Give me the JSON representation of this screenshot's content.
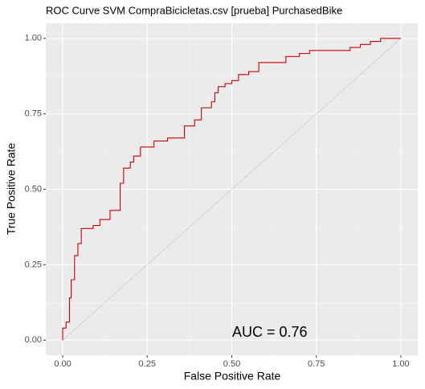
{
  "chart_data": {
    "type": "line",
    "title": "ROC Curve SVM CompraBicicletas.csv [prueba] PurchasedBike",
    "xlabel": "False Positive Rate",
    "ylabel": "True Positive Rate",
    "annotation": "AUC = 0.76",
    "xlim": [
      -0.05,
      1.05
    ],
    "ylim": [
      -0.05,
      1.05
    ],
    "xticks": [
      {
        "value": 0,
        "label": "0.00"
      },
      {
        "value": 0.25,
        "label": "0.25"
      },
      {
        "value": 0.5,
        "label": "0.50"
      },
      {
        "value": 0.75,
        "label": "0.75"
      },
      {
        "value": 1,
        "label": "1.00"
      }
    ],
    "yticks": [
      {
        "value": 0,
        "label": "0.00"
      },
      {
        "value": 0.25,
        "label": "0.25"
      },
      {
        "value": 0.5,
        "label": "0.50"
      },
      {
        "value": 0.75,
        "label": "0.75"
      },
      {
        "value": 1,
        "label": "1.00"
      }
    ],
    "grid": true,
    "diagonal_color": "#a6a6a6",
    "series": [
      {
        "color": "#cc0000",
        "x": [
          0,
          0,
          0.01,
          0.01,
          0.02,
          0.02,
          0.025,
          0.025,
          0.035,
          0.035,
          0.045,
          0.045,
          0.055,
          0.055,
          0.09,
          0.09,
          0.11,
          0.11,
          0.14,
          0.14,
          0.17,
          0.17,
          0.18,
          0.18,
          0.2,
          0.2,
          0.21,
          0.21,
          0.23,
          0.23,
          0.27,
          0.27,
          0.31,
          0.31,
          0.36,
          0.36,
          0.39,
          0.39,
          0.41,
          0.41,
          0.44,
          0.44,
          0.45,
          0.45,
          0.46,
          0.46,
          0.48,
          0.48,
          0.5,
          0.5,
          0.52,
          0.52,
          0.55,
          0.55,
          0.58,
          0.58,
          0.66,
          0.66,
          0.7,
          0.7,
          0.73,
          0.73,
          0.85,
          0.85,
          0.88,
          0.88,
          0.91,
          0.91,
          0.94,
          0.94,
          1
        ],
        "values": [
          0,
          0.04,
          0.04,
          0.06,
          0.06,
          0.14,
          0.14,
          0.2,
          0.2,
          0.28,
          0.28,
          0.32,
          0.32,
          0.37,
          0.37,
          0.38,
          0.38,
          0.4,
          0.4,
          0.43,
          0.43,
          0.52,
          0.52,
          0.57,
          0.57,
          0.59,
          0.59,
          0.61,
          0.61,
          0.64,
          0.64,
          0.66,
          0.66,
          0.67,
          0.67,
          0.71,
          0.71,
          0.73,
          0.73,
          0.77,
          0.77,
          0.79,
          0.79,
          0.82,
          0.82,
          0.84,
          0.84,
          0.85,
          0.85,
          0.86,
          0.86,
          0.88,
          0.88,
          0.89,
          0.89,
          0.92,
          0.92,
          0.94,
          0.94,
          0.95,
          0.95,
          0.96,
          0.96,
          0.97,
          0.97,
          0.98,
          0.98,
          0.99,
          0.99,
          1,
          1
        ]
      }
    ]
  }
}
